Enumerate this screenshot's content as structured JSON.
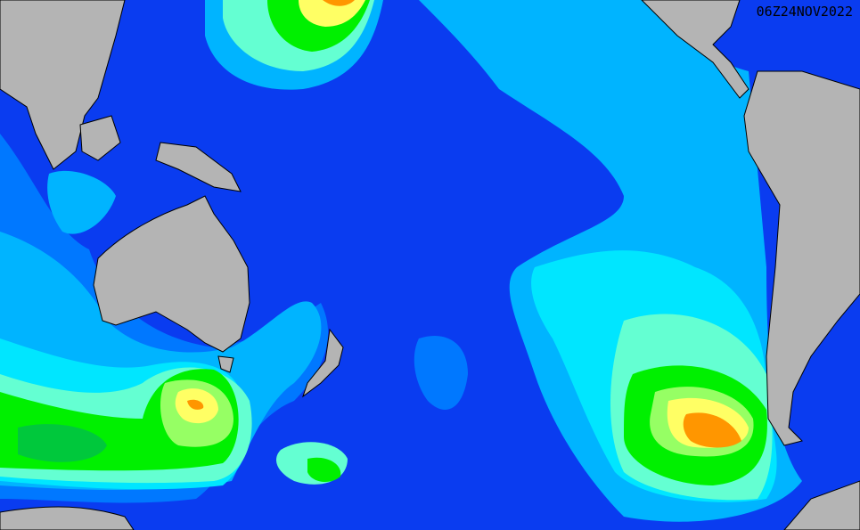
{
  "map": {
    "timestamp": "06Z24NOV2022",
    "colors": {
      "deep": "#0a0ac8",
      "blue": "#0a3cf0",
      "mid_blue": "#0078ff",
      "light_blue": "#00b4ff",
      "cyan": "#00e6ff",
      "aqua": "#64ffd2",
      "light_green": "#96ff64",
      "green": "#00f000",
      "dark_green": "#00c83c",
      "yellow": "#ffff64",
      "orange": "#ff9600",
      "red_orange": "#ff6400",
      "land": "#b4b4b4"
    }
  }
}
